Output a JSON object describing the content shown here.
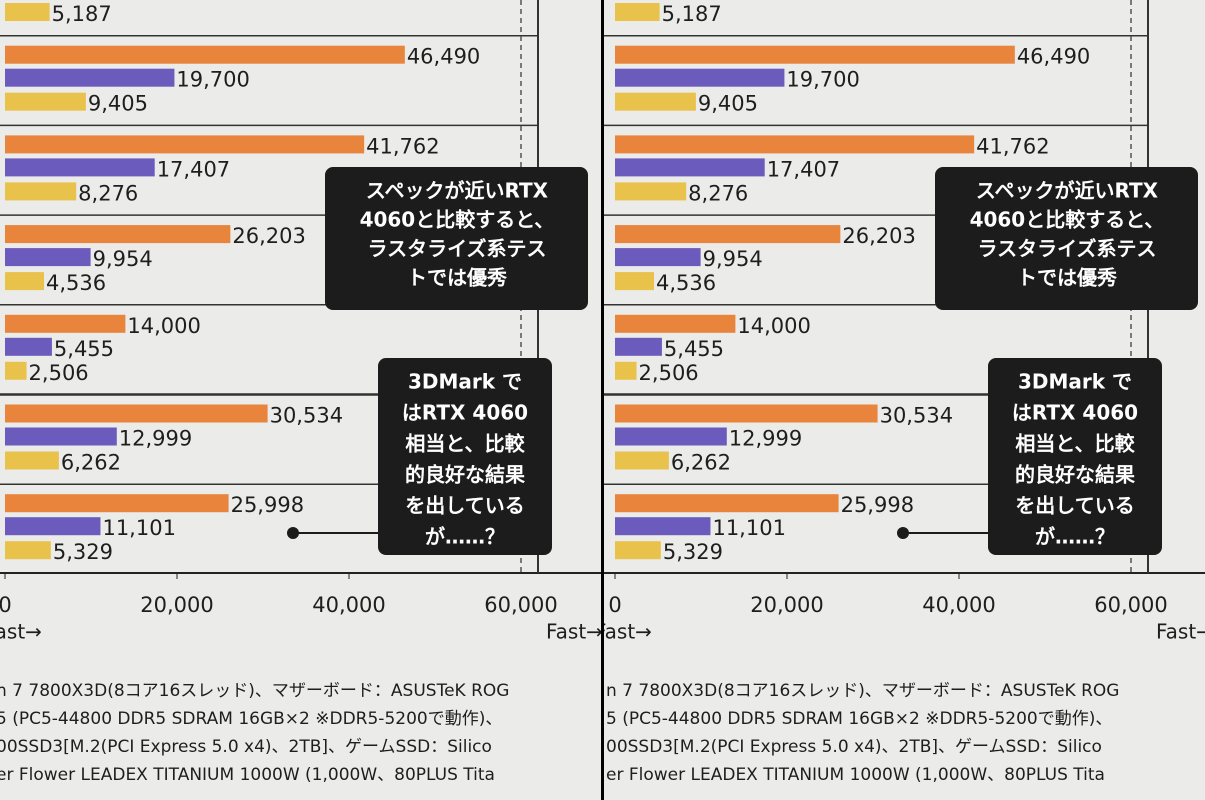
{
  "chart_data": {
    "type": "bar",
    "orientation": "horizontal",
    "categories": [
      null,
      null,
      null,
      null,
      null,
      null,
      null
    ],
    "series": [
      {
        "color": "#e8843c",
        "values": [
          null,
          46490,
          41762,
          26203,
          14000,
          30534,
          25998
        ],
        "value_labels": [
          null,
          "46,490",
          "41,762",
          "26,203",
          "14,000",
          "30,534",
          "25,998"
        ]
      },
      {
        "color": "#6b5bbd",
        "values": [
          null,
          19700,
          17407,
          9954,
          5455,
          12999,
          11101
        ],
        "value_labels": [
          null,
          "19,700",
          "17,407",
          "9,954",
          "5,455",
          "12,999",
          "11,101"
        ]
      },
      {
        "color": "#e9c24c",
        "values": [
          5187,
          9405,
          8276,
          4536,
          2506,
          6262,
          5329
        ],
        "value_labels": [
          "5,187",
          "9,405",
          "8,276",
          "4,536",
          "2,506",
          "6,262",
          "5,329"
        ]
      }
    ],
    "xlim": [
      0,
      60000
    ],
    "xticks": [
      0,
      {
        "value": 20000,
        "label": "20,000"
      },
      {
        "value": 40000,
        "label": "40,000"
      },
      {
        "value": 60000,
        "label": "60,000"
      }
    ],
    "axis_note": "Fast→",
    "annotations": [
      {
        "lines": [
          "スペックが近いRTX",
          "4060と比較すると、",
          "ラスタライズ系テス",
          "トでは優秀"
        ]
      },
      {
        "lines": [
          "3DMark で",
          "はRTX 4060",
          "相当と、比較",
          "的良好な結果",
          "を出している",
          "が……？"
        ]
      }
    ],
    "footer_lines": [
      "n 7 7800X3D(8コア16スレッド)、マザーボード：ASUSTeK ROG",
      "5 (PC5-44800 DDR5 SDRAM 16GB×2 ※DDR5-5200で動作)、",
      "00SSD3[M.2(PCI Express 5.0 x4)、2TB]、ゲームSSD：Silico",
      "er Flower LEADEX TITANIUM 1000W (1,000W、80PLUS Tita"
    ]
  }
}
